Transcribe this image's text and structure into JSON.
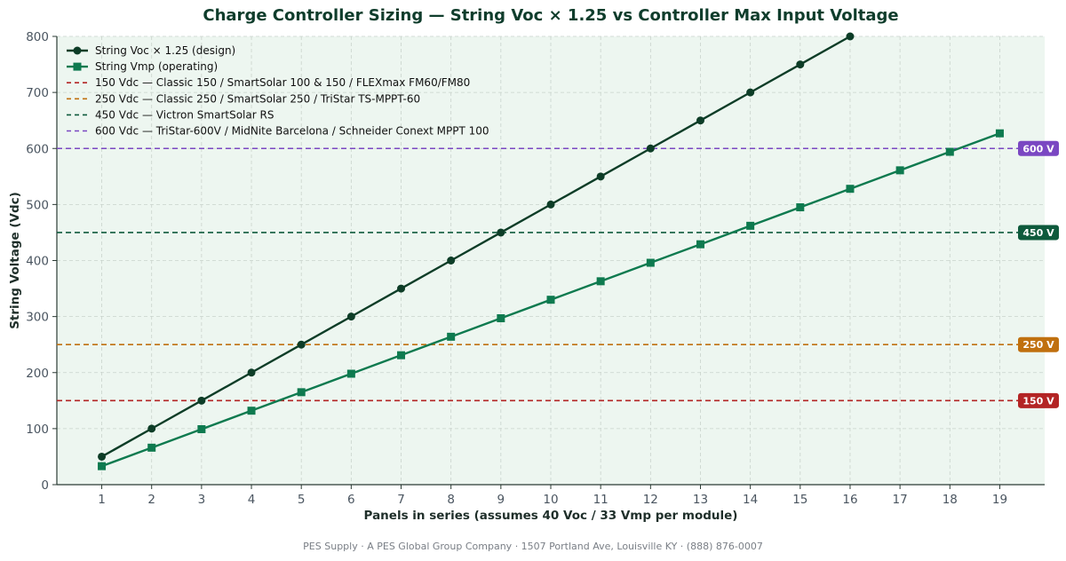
{
  "chart_data": {
    "type": "line",
    "title": "Charge Controller Sizing — String Voc × 1.25 vs Controller Max Input Voltage",
    "xlabel": "Panels in series (assumes 40 Voc / 33 Vmp per module)",
    "ylabel": "String Voltage (Vdc)",
    "xlim": [
      0.1,
      19.9
    ],
    "ylim": [
      0,
      800
    ],
    "xticks": [
      1,
      2,
      3,
      4,
      5,
      6,
      7,
      8,
      9,
      10,
      11,
      12,
      13,
      14,
      15,
      16,
      17,
      18,
      19
    ],
    "yticks": [
      0,
      100,
      200,
      300,
      400,
      500,
      600,
      700,
      800
    ],
    "grid": true,
    "legend_position": "top-left",
    "background_color": "#edf6f0",
    "series": [
      {
        "name": "String Voc × 1.25 (design)",
        "color": "#0d3d27",
        "marker": "circle",
        "x": [
          1,
          2,
          3,
          4,
          5,
          6,
          7,
          8,
          9,
          10,
          11,
          12,
          13,
          14,
          15,
          16
        ],
        "values": [
          50,
          100,
          150,
          200,
          250,
          300,
          350,
          400,
          450,
          500,
          550,
          600,
          650,
          700,
          750,
          800
        ]
      },
      {
        "name": "String Vmp (operating)",
        "color": "#0e7a4f",
        "marker": "square",
        "x": [
          1,
          2,
          3,
          4,
          5,
          6,
          7,
          8,
          9,
          10,
          11,
          12,
          13,
          14,
          15,
          16,
          17,
          18,
          19
        ],
        "values": [
          33,
          66,
          99,
          132,
          165,
          198,
          231,
          264,
          297,
          330,
          363,
          396,
          429,
          462,
          495,
          528,
          561,
          594,
          627
        ]
      }
    ],
    "thresholds": [
      {
        "value": 150,
        "legend": "150 Vdc — Classic 150 / SmartSolar 100 & 150 / FLEXmax FM60/FM80",
        "badge": "150 V",
        "color": "#b32424"
      },
      {
        "value": 250,
        "legend": "250 Vdc — Classic 250 / SmartSolar 250 / TriStar TS-MPPT-60",
        "badge": "250 V",
        "color": "#c0700f"
      },
      {
        "value": 450,
        "legend": "450 Vdc — Victron SmartSolar RS",
        "badge": "450 V",
        "color": "#0e5a3c"
      },
      {
        "value": 600,
        "legend": "600 Vdc — TriStar-600V / MidNite Barcelona / Schneider Conext MPPT 100",
        "badge": "600 V",
        "color": "#7a47c2"
      }
    ]
  },
  "footer": {
    "text": "PES Supply · A PES Global Group Company · 1507 Portland Ave, Louisville KY · (888) 876-0007"
  }
}
